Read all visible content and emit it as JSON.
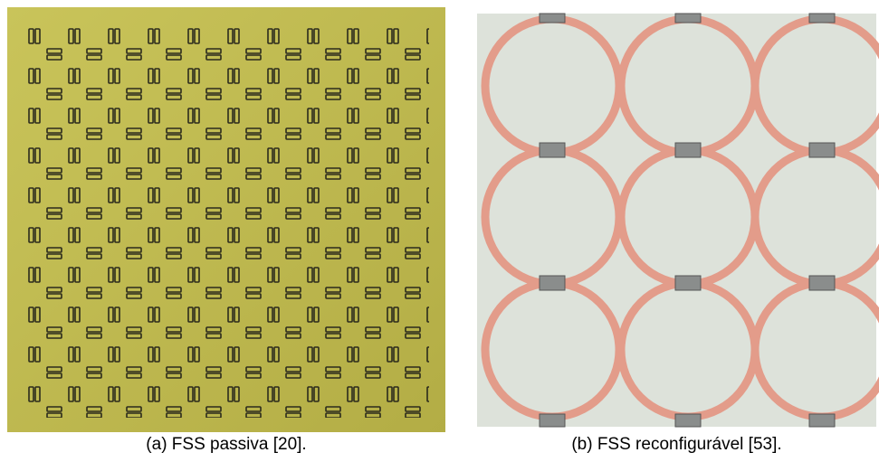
{
  "figure": {
    "panels": [
      {
        "caption": "(a)  FSS passiva [20]."
      },
      {
        "caption": "(b)  FSS reconfigurável [53]."
      }
    ]
  }
}
